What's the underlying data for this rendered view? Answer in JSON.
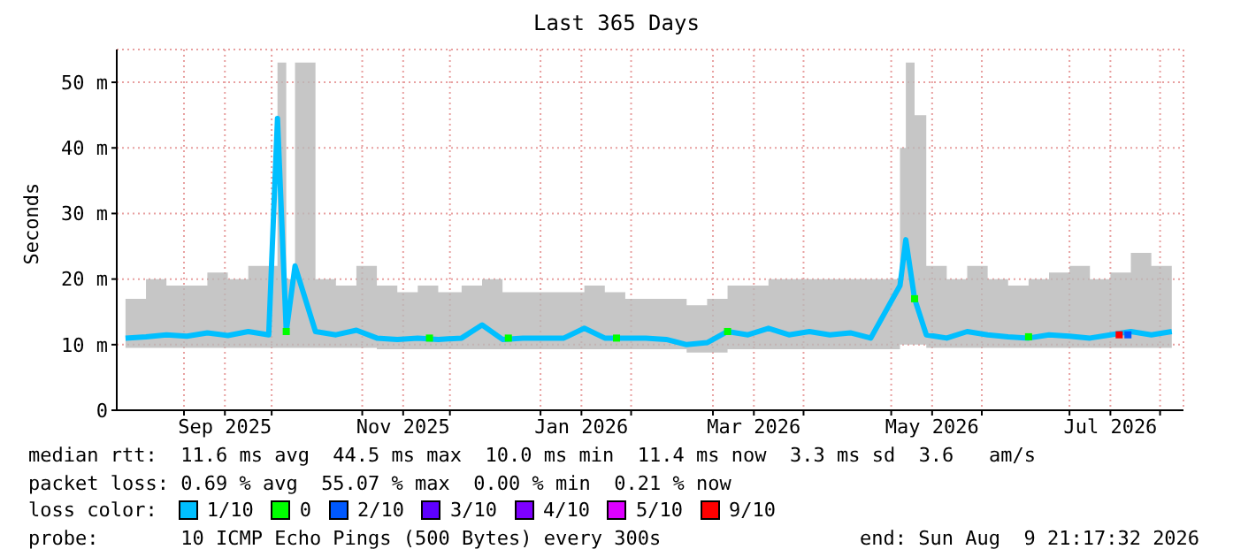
{
  "chart_data": {
    "type": "line",
    "title": "Last 365 Days",
    "ylabel": "Seconds",
    "legend_title": "loss color:",
    "legend": "bottom",
    "grid": true,
    "xlim": [
      "2025-08-09",
      "2026-08-09"
    ],
    "xticks": [
      {
        "value": "2025-09-01",
        "label": null
      },
      {
        "value": "2025-09-15",
        "label": "Sep 2025"
      },
      {
        "value": "2025-10-01",
        "label": null
      },
      {
        "value": "2025-11-01",
        "label": null
      },
      {
        "value": "2025-11-15",
        "label": "Nov 2025"
      },
      {
        "value": "2025-12-01",
        "label": null
      },
      {
        "value": "2026-01-01",
        "label": null
      },
      {
        "value": "2026-01-15",
        "label": "Jan 2026"
      },
      {
        "value": "2026-02-01",
        "label": null
      },
      {
        "value": "2026-03-01",
        "label": null
      },
      {
        "value": "2026-03-15",
        "label": "Mar 2026"
      },
      {
        "value": "2026-04-01",
        "label": null
      },
      {
        "value": "2026-05-01",
        "label": null
      },
      {
        "value": "2026-05-15",
        "label": "May 2026"
      },
      {
        "value": "2026-06-01",
        "label": null
      },
      {
        "value": "2026-07-01",
        "label": null
      },
      {
        "value": "2026-07-15",
        "label": "Jul 2026"
      },
      {
        "value": "2026-08-01",
        "label": null
      }
    ],
    "ylim": [
      0,
      55
    ],
    "yticks": [
      0,
      {
        "value": 10,
        "label": "10 m"
      },
      {
        "value": 20,
        "label": "20 m"
      },
      {
        "value": 30,
        "label": "30 m"
      },
      {
        "value": 40,
        "label": "40 m"
      },
      {
        "value": 50,
        "label": "50 m"
      }
    ],
    "series": [
      {
        "name": "1/10",
        "color": "#00bfff",
        "x": [
          "2025-08-12",
          "2025-08-19",
          "2025-08-26",
          "2025-09-02",
          "2025-09-09",
          "2025-09-16",
          "2025-09-23",
          "2025-09-30",
          "2025-10-03",
          "2025-10-06",
          "2025-10-09",
          "2025-10-16",
          "2025-10-23",
          "2025-10-30",
          "2025-11-06",
          "2025-11-13",
          "2025-11-20",
          "2025-11-27",
          "2025-12-05",
          "2025-12-12",
          "2025-12-19",
          "2025-12-26",
          "2026-01-02",
          "2026-01-09",
          "2026-01-16",
          "2026-01-23",
          "2026-01-30",
          "2026-02-06",
          "2026-02-13",
          "2026-02-20",
          "2026-02-27",
          "2026-03-06",
          "2026-03-13",
          "2026-03-20",
          "2026-03-27",
          "2026-04-03",
          "2026-04-10",
          "2026-04-17",
          "2026-04-24",
          "2026-05-04",
          "2026-05-06",
          "2026-05-09",
          "2026-05-13",
          "2026-05-20",
          "2026-05-27",
          "2026-06-03",
          "2026-06-10",
          "2026-06-17",
          "2026-06-24",
          "2026-07-01",
          "2026-07-08",
          "2026-07-15",
          "2026-07-22",
          "2026-07-29",
          "2026-08-05"
        ],
        "values": [
          11,
          11.2,
          11.5,
          11.3,
          11.8,
          11.4,
          12,
          11.5,
          44.5,
          12,
          22,
          12,
          11.5,
          12.2,
          11,
          10.8,
          11,
          10.8,
          11,
          13,
          10.8,
          11,
          11,
          11,
          12.5,
          11,
          11,
          11,
          10.8,
          10,
          10.3,
          12,
          11.5,
          12.5,
          11.5,
          12,
          11.5,
          11.8,
          11,
          19,
          26,
          17,
          11.5,
          11,
          12,
          11.5,
          11.2,
          11,
          11.5,
          11.3,
          11,
          11.5,
          12,
          11.5,
          12
        ],
        "lower": [
          9.5,
          9.5,
          9.5,
          9.5,
          9.5,
          9.5,
          9.5,
          9.5,
          9.5,
          9.5,
          9.5,
          9.5,
          9.5,
          9.5,
          9.3,
          9.3,
          9.3,
          9.3,
          9.3,
          9.3,
          9.3,
          9.3,
          9.3,
          9.3,
          9.3,
          9.3,
          9.3,
          9.3,
          9.3,
          8.8,
          8.8,
          9.3,
          9.3,
          9.3,
          9.3,
          9.3,
          9.3,
          9.3,
          9.3,
          10,
          10,
          10,
          9.5,
          9.5,
          9.5,
          9.5,
          9.5,
          9.5,
          9.5,
          9.5,
          9.5,
          9.5,
          9.5,
          9.5,
          9.5
        ],
        "upper": [
          17,
          20,
          19,
          19,
          21,
          20,
          22,
          22,
          53,
          20,
          53,
          20,
          19,
          22,
          19,
          18,
          19,
          18,
          19,
          20,
          18,
          18,
          18,
          18,
          19,
          18,
          17,
          17,
          17,
          16,
          17,
          19,
          19,
          20,
          20,
          20,
          20,
          20,
          20,
          40,
          53,
          45,
          22,
          20,
          22,
          20,
          19,
          20,
          21,
          22,
          20,
          21,
          24,
          22,
          22
        ]
      },
      {
        "name": "0",
        "type": "scatter",
        "marker": "square",
        "color": "#00ff00",
        "x": [
          "2025-10-06",
          "2025-11-24",
          "2025-12-21",
          "2026-01-27",
          "2026-03-06",
          "2026-05-09",
          "2026-06-17"
        ],
        "values": [
          12,
          11,
          11,
          11,
          12,
          17,
          11.2
        ]
      },
      {
        "name": "2/10",
        "type": "scatter",
        "marker": "square",
        "color": "#0059ff",
        "x": [
          "2026-07-21"
        ],
        "values": [
          11.5
        ]
      },
      {
        "name": "3/10",
        "type": "scatter",
        "color": "#5e00ff"
      },
      {
        "name": "4/10",
        "type": "scatter",
        "color": "#7e00ff"
      },
      {
        "name": "5/10",
        "type": "scatter",
        "color": "#dd00ff"
      },
      {
        "name": "9/10",
        "type": "scatter",
        "marker": "square",
        "color": "#ff0000",
        "x": [
          "2026-07-18"
        ],
        "values": [
          11.5
        ]
      }
    ],
    "annotations": [
      "median rtt:  11.6 ms avg  44.5 ms max  10.0 ms min  11.4 ms now  3.3 ms sd  3.6   am/s",
      "packet loss: 0.69 % avg  55.07 % max  0.00 % min  0.21 % now",
      "probe:       10 ICMP Echo Pings (500 Bytes) every 300s",
      "end: Sun Aug  9 21:17:32 2026"
    ]
  }
}
